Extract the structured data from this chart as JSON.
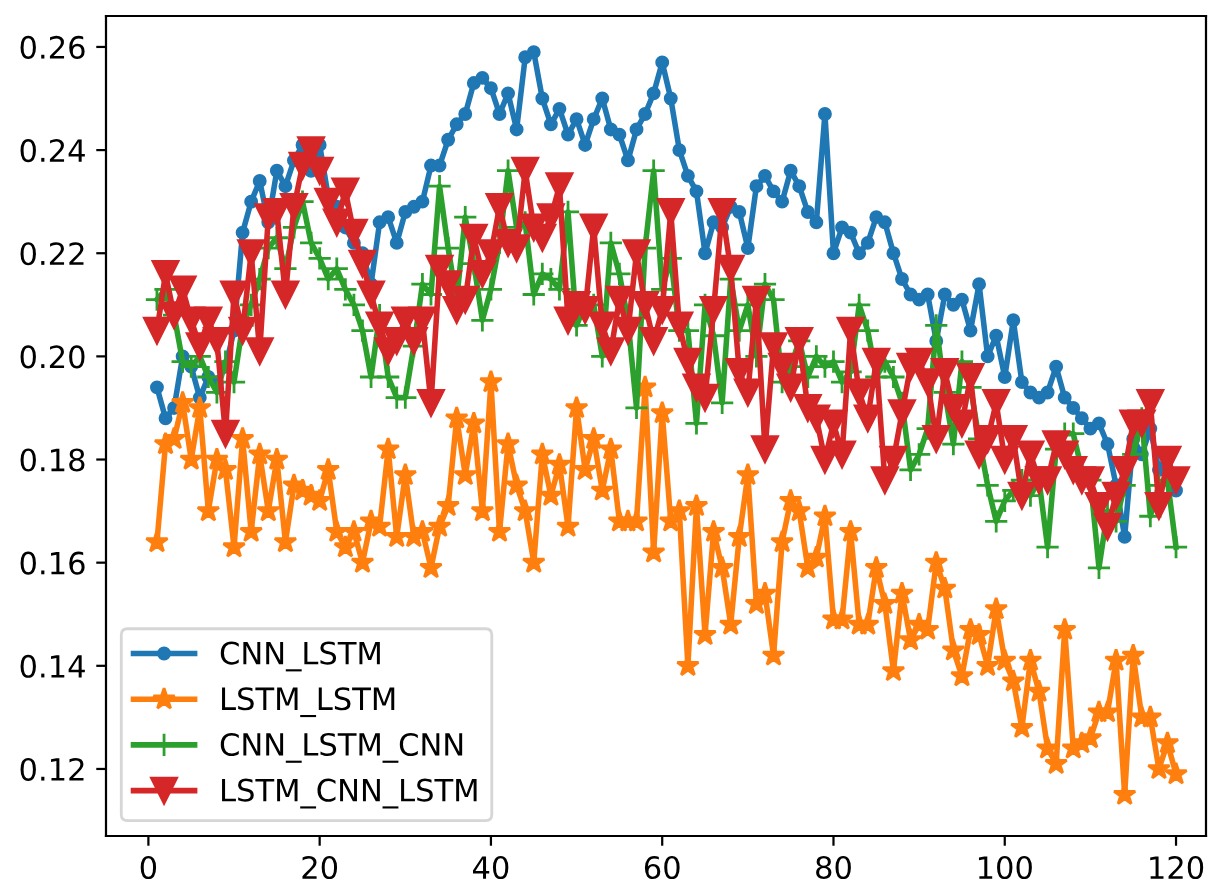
{
  "chart_data": {
    "type": "line",
    "x": [
      1,
      2,
      3,
      4,
      5,
      6,
      7,
      8,
      9,
      10,
      11,
      12,
      13,
      14,
      15,
      16,
      17,
      18,
      19,
      20,
      21,
      22,
      23,
      24,
      25,
      26,
      27,
      28,
      29,
      30,
      31,
      32,
      33,
      34,
      35,
      36,
      37,
      38,
      39,
      40,
      41,
      42,
      43,
      44,
      45,
      46,
      47,
      48,
      49,
      50,
      51,
      52,
      53,
      54,
      55,
      56,
      57,
      58,
      59,
      60,
      61,
      62,
      63,
      64,
      65,
      66,
      67,
      68,
      69,
      70,
      71,
      72,
      73,
      74,
      75,
      76,
      77,
      78,
      79,
      80,
      81,
      82,
      83,
      84,
      85,
      86,
      87,
      88,
      89,
      90,
      91,
      92,
      93,
      94,
      95,
      96,
      97,
      98,
      99,
      100,
      101,
      102,
      103,
      104,
      105,
      106,
      107,
      108,
      109,
      110,
      111,
      112,
      113,
      114,
      115,
      116,
      117,
      118,
      119,
      120
    ],
    "series": [
      {
        "name": "CNN_LSTM",
        "color": "#1f77b4",
        "marker": "circle",
        "values": [
          0.194,
          0.188,
          0.19,
          0.2,
          0.198,
          0.192,
          0.196,
          0.195,
          0.198,
          0.205,
          0.224,
          0.23,
          0.234,
          0.226,
          0.236,
          0.233,
          0.238,
          0.241,
          0.236,
          0.241,
          0.231,
          0.229,
          0.225,
          0.222,
          0.22,
          0.214,
          0.226,
          0.227,
          0.222,
          0.228,
          0.229,
          0.23,
          0.237,
          0.237,
          0.242,
          0.245,
          0.247,
          0.253,
          0.254,
          0.252,
          0.247,
          0.251,
          0.244,
          0.258,
          0.259,
          0.25,
          0.245,
          0.248,
          0.243,
          0.246,
          0.241,
          0.246,
          0.25,
          0.244,
          0.243,
          0.238,
          0.244,
          0.247,
          0.251,
          0.257,
          0.25,
          0.24,
          0.235,
          0.232,
          0.22,
          0.226,
          0.225,
          0.229,
          0.228,
          0.221,
          0.233,
          0.235,
          0.232,
          0.23,
          0.236,
          0.233,
          0.228,
          0.226,
          0.247,
          0.22,
          0.225,
          0.224,
          0.22,
          0.222,
          0.227,
          0.226,
          0.22,
          0.215,
          0.212,
          0.211,
          0.212,
          0.203,
          0.212,
          0.21,
          0.211,
          0.205,
          0.214,
          0.2,
          0.204,
          0.196,
          0.207,
          0.195,
          0.193,
          0.192,
          0.193,
          0.198,
          0.192,
          0.19,
          0.188,
          0.186,
          0.187,
          0.183,
          0.175,
          0.165,
          0.184,
          0.181,
          0.186,
          0.178,
          0.181,
          0.174
        ]
      },
      {
        "name": "LSTM_LSTM",
        "color": "#ff7f0e",
        "marker": "star",
        "values": [
          0.164,
          0.183,
          0.184,
          0.191,
          0.18,
          0.19,
          0.17,
          0.18,
          0.178,
          0.163,
          0.184,
          0.166,
          0.181,
          0.17,
          0.18,
          0.164,
          0.175,
          0.174,
          0.173,
          0.172,
          0.178,
          0.166,
          0.163,
          0.166,
          0.16,
          0.168,
          0.167,
          0.182,
          0.165,
          0.177,
          0.165,
          0.166,
          0.159,
          0.167,
          0.171,
          0.188,
          0.177,
          0.187,
          0.17,
          0.195,
          0.166,
          0.183,
          0.175,
          0.17,
          0.16,
          0.181,
          0.173,
          0.179,
          0.167,
          0.19,
          0.178,
          0.184,
          0.174,
          0.182,
          0.168,
          0.168,
          0.168,
          0.194,
          0.162,
          0.189,
          0.168,
          0.17,
          0.14,
          0.171,
          0.146,
          0.166,
          0.159,
          0.148,
          0.165,
          0.177,
          0.152,
          0.154,
          0.142,
          0.164,
          0.172,
          0.17,
          0.159,
          0.161,
          0.169,
          0.149,
          0.149,
          0.166,
          0.148,
          0.148,
          0.159,
          0.152,
          0.139,
          0.154,
          0.145,
          0.148,
          0.147,
          0.16,
          0.155,
          0.143,
          0.138,
          0.147,
          0.146,
          0.14,
          0.151,
          0.141,
          0.137,
          0.128,
          0.141,
          0.135,
          0.124,
          0.121,
          0.147,
          0.124,
          0.125,
          0.126,
          0.131,
          0.131,
          0.141,
          0.115,
          0.142,
          0.13,
          0.13,
          0.12,
          0.125,
          0.119
        ]
      },
      {
        "name": "CNN_LSTM_CNN",
        "color": "#2ca02c",
        "marker": "cross",
        "values": [
          0.211,
          0.213,
          0.208,
          0.199,
          0.198,
          0.2,
          0.196,
          0.193,
          0.199,
          0.195,
          0.206,
          0.21,
          0.215,
          0.221,
          0.223,
          0.217,
          0.225,
          0.23,
          0.222,
          0.219,
          0.215,
          0.217,
          0.213,
          0.21,
          0.205,
          0.196,
          0.208,
          0.196,
          0.192,
          0.192,
          0.202,
          0.214,
          0.212,
          0.233,
          0.221,
          0.211,
          0.227,
          0.218,
          0.207,
          0.213,
          0.222,
          0.236,
          0.225,
          0.226,
          0.212,
          0.216,
          0.215,
          0.213,
          0.228,
          0.206,
          0.21,
          0.21,
          0.2,
          0.222,
          0.216,
          0.207,
          0.19,
          0.221,
          0.236,
          0.213,
          0.219,
          0.205,
          0.205,
          0.187,
          0.21,
          0.204,
          0.191,
          0.215,
          0.205,
          0.21,
          0.2,
          0.214,
          0.211,
          0.195,
          0.198,
          0.203,
          0.196,
          0.2,
          0.198,
          0.199,
          0.195,
          0.197,
          0.21,
          0.205,
          0.196,
          0.199,
          0.196,
          0.191,
          0.178,
          0.181,
          0.186,
          0.206,
          0.193,
          0.183,
          0.199,
          0.194,
          0.184,
          0.175,
          0.168,
          0.172,
          0.174,
          0.176,
          0.173,
          0.176,
          0.163,
          0.182,
          0.185,
          0.185,
          0.178,
          0.176,
          0.159,
          0.17,
          0.168,
          0.175,
          0.181,
          0.188,
          0.169,
          0.175,
          0.176,
          0.163
        ]
      },
      {
        "name": "LSTM_CNN_LSTM",
        "color": "#d62728",
        "marker": "triangle",
        "values": [
          0.205,
          0.216,
          0.208,
          0.213,
          0.207,
          0.202,
          0.207,
          0.203,
          0.185,
          0.212,
          0.205,
          0.22,
          0.201,
          0.227,
          0.228,
          0.212,
          0.229,
          0.237,
          0.24,
          0.236,
          0.23,
          0.226,
          0.232,
          0.224,
          0.218,
          0.212,
          0.206,
          0.201,
          0.203,
          0.207,
          0.203,
          0.207,
          0.191,
          0.217,
          0.214,
          0.209,
          0.211,
          0.223,
          0.216,
          0.22,
          0.229,
          0.222,
          0.221,
          0.236,
          0.225,
          0.223,
          0.227,
          0.233,
          0.207,
          0.21,
          0.209,
          0.225,
          0.206,
          0.201,
          0.211,
          0.205,
          0.22,
          0.21,
          0.203,
          0.209,
          0.228,
          0.206,
          0.199,
          0.194,
          0.192,
          0.209,
          0.228,
          0.217,
          0.197,
          0.193,
          0.211,
          0.182,
          0.202,
          0.198,
          0.194,
          0.203,
          0.19,
          0.188,
          0.18,
          0.187,
          0.181,
          0.205,
          0.193,
          0.188,
          0.199,
          0.176,
          0.18,
          0.189,
          0.198,
          0.199,
          0.195,
          0.184,
          0.197,
          0.19,
          0.187,
          0.196,
          0.181,
          0.184,
          0.191,
          0.18,
          0.184,
          0.173,
          0.181,
          0.176,
          0.176,
          0.183,
          0.181,
          0.178,
          0.176,
          0.176,
          0.171,
          0.167,
          0.173,
          0.178,
          0.187,
          0.187,
          0.191,
          0.171,
          0.18,
          0.176
        ]
      }
    ],
    "xlim": [
      -4.95,
      123.5
    ],
    "xticks": [
      0,
      20,
      40,
      60,
      80,
      100,
      120
    ],
    "ylim": [
      0.107,
      0.266
    ],
    "yticks": [
      {
        "value": 0.12,
        "label": "0.12"
      },
      {
        "value": 0.14,
        "label": "0.14"
      },
      {
        "value": 0.16,
        "label": "0.16"
      },
      {
        "value": 0.18,
        "label": "0.18"
      },
      {
        "value": 0.2,
        "label": "0.20"
      },
      {
        "value": 0.22,
        "label": "0.22"
      },
      {
        "value": 0.24,
        "label": "0.24"
      },
      {
        "value": 0.26,
        "label": "0.26"
      }
    ],
    "legend": "bottom left",
    "line_style": "solid"
  }
}
